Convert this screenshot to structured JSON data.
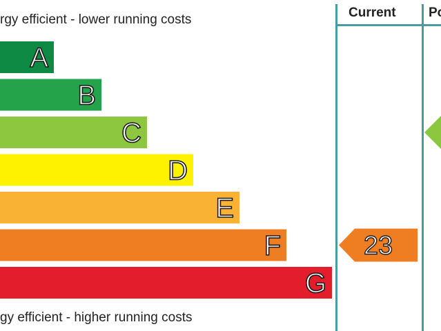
{
  "captions": {
    "top": "rgy efficient - lower running costs",
    "bottom": "gy efficient - higher running costs"
  },
  "columns": {
    "current": "Current",
    "potential": "Po"
  },
  "chart_data": {
    "type": "bar",
    "orientation": "horizontal",
    "categories": [
      "A",
      "B",
      "C",
      "D",
      "E",
      "F",
      "G"
    ],
    "colors": {
      "A": "#0f8a45",
      "B": "#25a34a",
      "C": "#8dc73f",
      "D": "#fff200",
      "E": "#f9b233",
      "F": "#ef7d22",
      "G": "#e31d2b"
    },
    "current": {
      "value": 23,
      "band": "F",
      "color": "#ef7d22"
    },
    "potential": {
      "band": "C",
      "color": "#8dc73f"
    }
  }
}
